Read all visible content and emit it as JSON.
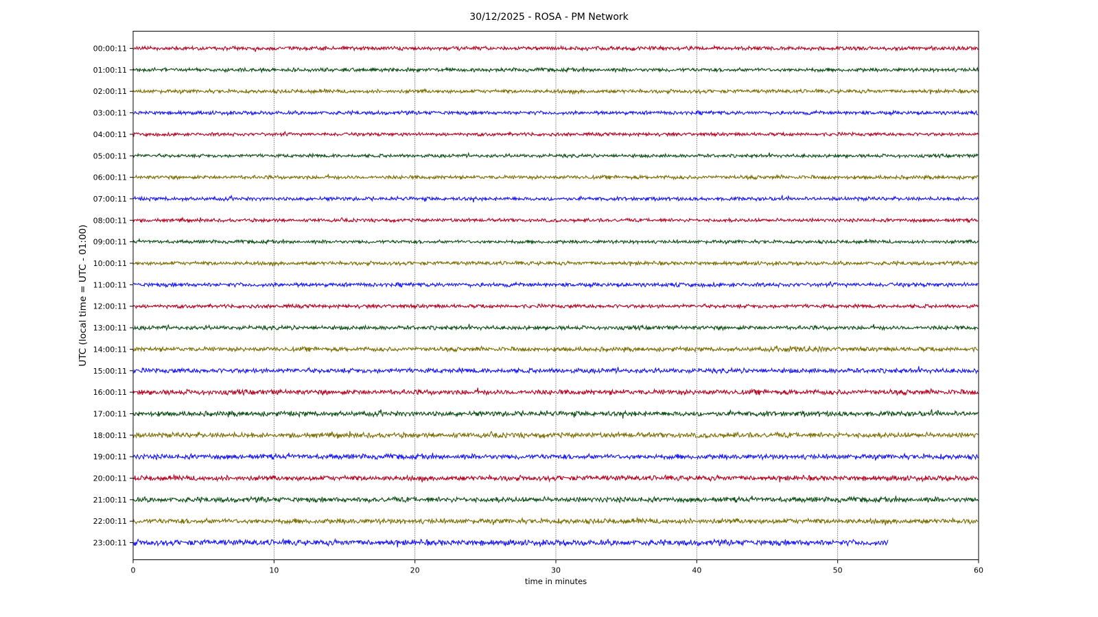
{
  "chart_data": {
    "type": "line",
    "title": "30/12/2025 - ROSA - PM Network",
    "xlabel": "time in minutes",
    "ylabel": "UTC (local time = UTC - 01:00)",
    "xlim": [
      0,
      60
    ],
    "x_ticks": [
      0,
      10,
      20,
      30,
      40,
      50,
      60
    ],
    "grid": "vertical dotted at x ticks",
    "colors": [
      "#b8001f",
      "#0a4d12",
      "#7a6c00",
      "#1414ff"
    ],
    "series": [
      {
        "name": "00:00:11",
        "x_end": 60,
        "amplitude": 2.2
      },
      {
        "name": "01:00:11",
        "x_end": 60,
        "amplitude": 2.2
      },
      {
        "name": "02:00:11",
        "x_end": 60,
        "amplitude": 2.2
      },
      {
        "name": "03:00:11",
        "x_end": 60,
        "amplitude": 2.2
      },
      {
        "name": "04:00:11",
        "x_end": 60,
        "amplitude": 2.0
      },
      {
        "name": "05:00:11",
        "x_end": 60,
        "amplitude": 2.0
      },
      {
        "name": "06:00:11",
        "x_end": 60,
        "amplitude": 2.2
      },
      {
        "name": "07:00:11",
        "x_end": 60,
        "amplitude": 2.2
      },
      {
        "name": "08:00:11",
        "x_end": 60,
        "amplitude": 2.0
      },
      {
        "name": "09:00:11",
        "x_end": 60,
        "amplitude": 2.0
      },
      {
        "name": "10:00:11",
        "x_end": 60,
        "amplitude": 2.2
      },
      {
        "name": "11:00:11",
        "x_end": 60,
        "amplitude": 2.4
      },
      {
        "name": "12:00:11",
        "x_end": 60,
        "amplitude": 2.2
      },
      {
        "name": "13:00:11",
        "x_end": 60,
        "amplitude": 2.4
      },
      {
        "name": "14:00:11",
        "x_end": 60,
        "amplitude": 2.6,
        "event": [
          46,
          49,
          4.5
        ]
      },
      {
        "name": "15:00:11",
        "x_end": 60,
        "amplitude": 2.8
      },
      {
        "name": "16:00:11",
        "x_end": 60,
        "amplitude": 3.0
      },
      {
        "name": "17:00:11",
        "x_end": 60,
        "amplitude": 3.0
      },
      {
        "name": "18:00:11",
        "x_end": 60,
        "amplitude": 3.0
      },
      {
        "name": "19:00:11",
        "x_end": 60,
        "amplitude": 3.0
      },
      {
        "name": "20:00:11",
        "x_end": 60,
        "amplitude": 3.0
      },
      {
        "name": "21:00:11",
        "x_end": 60,
        "amplitude": 3.0,
        "event": [
          16.7,
          16.8,
          7
        ]
      },
      {
        "name": "22:00:11",
        "x_end": 60,
        "amplitude": 3.0
      },
      {
        "name": "23:00:11",
        "x_end": 53.6,
        "amplitude": 3.4
      }
    ]
  }
}
